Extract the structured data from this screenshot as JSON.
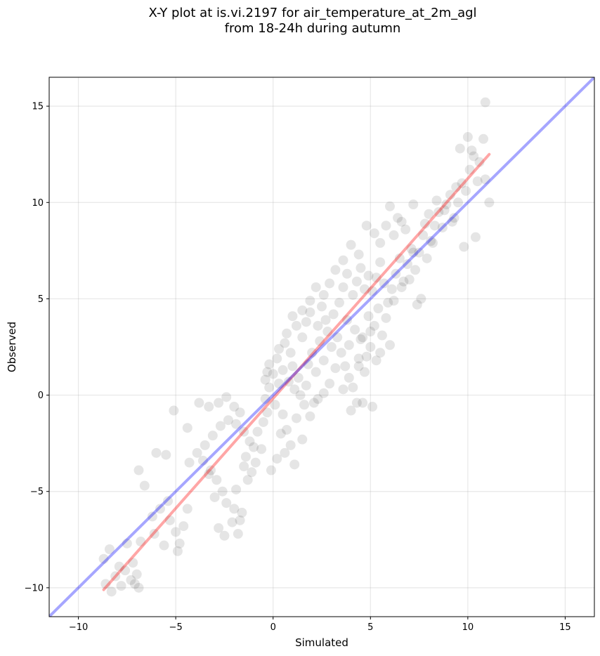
{
  "chart_data": {
    "type": "scatter",
    "title": [
      "X-Y plot at is.vi.2197 for air_temperature_at_2m_agl",
      "from 18-24h during autumn"
    ],
    "xlabel": "Simulated",
    "ylabel": "Observed",
    "xlim": [
      -11.5,
      16.5
    ],
    "ylim": [
      -11.5,
      16.5
    ],
    "xticks": [
      -10,
      -5,
      0,
      5,
      10,
      15
    ],
    "yticks": [
      -10,
      -5,
      0,
      5,
      10,
      15
    ],
    "xtick_labels": [
      "−10",
      "−5",
      "0",
      "5",
      "10",
      "15"
    ],
    "ytick_labels": [
      "−10",
      "−5",
      "0",
      "5",
      "10",
      "15"
    ],
    "grid": true,
    "point_color": "#000000",
    "point_alpha": 0.1,
    "series": [
      {
        "type": "scatter",
        "values": [
          [
            -8.6,
            -9.8
          ],
          [
            -8.3,
            -10.2
          ],
          [
            -8.1,
            -9.4
          ],
          [
            -7.9,
            -8.9
          ],
          [
            -7.6,
            -9.1
          ],
          [
            -7.3,
            -9.6
          ],
          [
            -7.0,
            -9.3
          ],
          [
            -6.9,
            -10.0
          ],
          [
            -7.2,
            -8.7
          ],
          [
            -7.5,
            -7.7
          ],
          [
            -7.8,
            -9.9
          ],
          [
            -8.4,
            -8.0
          ],
          [
            -8.7,
            -8.5
          ],
          [
            -7.1,
            -9.8
          ],
          [
            -6.9,
            -3.9
          ],
          [
            -6.6,
            -4.7
          ],
          [
            -6.0,
            -3.0
          ],
          [
            -5.5,
            -3.1
          ],
          [
            -5.8,
            -5.9
          ],
          [
            -5.3,
            -6.5
          ],
          [
            -5.0,
            -7.1
          ],
          [
            -4.8,
            -7.7
          ],
          [
            -4.6,
            -6.8
          ],
          [
            -4.4,
            -5.9
          ],
          [
            -6.2,
            -6.3
          ],
          [
            -5.6,
            -7.8
          ],
          [
            -5.1,
            -0.8
          ],
          [
            -4.4,
            -1.7
          ],
          [
            -6.8,
            -7.6
          ],
          [
            -6.1,
            -7.2
          ],
          [
            -4.9,
            -8.1
          ],
          [
            -5.4,
            -5.5
          ],
          [
            -3.9,
            -3.0
          ],
          [
            -3.5,
            -2.6
          ],
          [
            -3.2,
            -3.9
          ],
          [
            -2.9,
            -4.4
          ],
          [
            -2.6,
            -5.0
          ],
          [
            -2.4,
            -5.6
          ],
          [
            -2.8,
            -6.9
          ],
          [
            -2.5,
            -7.3
          ],
          [
            -2.1,
            -6.6
          ],
          [
            -1.8,
            -7.2
          ],
          [
            -1.6,
            -6.1
          ],
          [
            -1.9,
            -4.9
          ],
          [
            -3.3,
            -4.1
          ],
          [
            -3.6,
            -3.4
          ],
          [
            -3.1,
            -2.1
          ],
          [
            -2.7,
            -1.6
          ],
          [
            -2.3,
            -1.3
          ],
          [
            -1.9,
            -1.5
          ],
          [
            -1.5,
            -1.9
          ],
          [
            -1.2,
            -2.4
          ],
          [
            -1.4,
            -3.2
          ],
          [
            -1.0,
            -2.7
          ],
          [
            -0.8,
            -1.9
          ],
          [
            -3.8,
            -0.4
          ],
          [
            -3.3,
            -0.6
          ],
          [
            -2.8,
            -0.4
          ],
          [
            -2.4,
            -0.1
          ],
          [
            -2.0,
            -0.6
          ],
          [
            -1.7,
            -0.9
          ],
          [
            -1.5,
            -3.7
          ],
          [
            -1.3,
            -4.4
          ],
          [
            -0.9,
            -3.5
          ],
          [
            -0.6,
            -2.8
          ],
          [
            -0.5,
            -1.4
          ],
          [
            -0.3,
            -0.9
          ],
          [
            -3.0,
            -5.3
          ],
          [
            -1.7,
            -6.5
          ],
          [
            -4.3,
            -3.5
          ],
          [
            -2.0,
            -5.9
          ],
          [
            -1.1,
            -4.0
          ],
          [
            -0.4,
            -0.2
          ],
          [
            -0.2,
            0.4
          ],
          [
            0.1,
            -0.5
          ],
          [
            0.3,
            0.6
          ],
          [
            0.5,
            -1.0
          ],
          [
            0.7,
            -1.8
          ],
          [
            0.9,
            -2.6
          ],
          [
            1.1,
            -3.6
          ],
          [
            0.4,
            -2.0
          ],
          [
            0.2,
            -3.3
          ],
          [
            -0.1,
            -3.9
          ],
          [
            0.6,
            -3.0
          ],
          [
            1.5,
            -2.3
          ],
          [
            1.2,
            -1.2
          ],
          [
            1.6,
            -0.5
          ],
          [
            1.9,
            -1.1
          ],
          [
            2.1,
            -0.4
          ],
          [
            0.0,
            1.1
          ],
          [
            0.2,
            1.9
          ],
          [
            -0.2,
            1.6
          ],
          [
            -0.4,
            0.8
          ],
          [
            0.5,
            1.3
          ],
          [
            0.8,
            0.7
          ],
          [
            1.0,
            1.5
          ],
          [
            1.3,
            0.9
          ],
          [
            0.9,
            2.2
          ],
          [
            0.6,
            2.7
          ],
          [
            0.3,
            2.4
          ],
          [
            -0.3,
            1.2
          ],
          [
            1.1,
            0.3
          ],
          [
            1.4,
            0.0
          ],
          [
            1.7,
            0.5
          ],
          [
            1.8,
            1.6
          ],
          [
            2.0,
            2.2
          ],
          [
            2.2,
            1.2
          ],
          [
            2.4,
            2.8
          ],
          [
            2.6,
            1.8
          ],
          [
            2.8,
            3.3
          ],
          [
            3.0,
            2.5
          ],
          [
            1.5,
            3.0
          ],
          [
            1.7,
            3.8
          ],
          [
            1.9,
            4.3
          ],
          [
            2.3,
            3.6
          ],
          [
            2.5,
            4.6
          ],
          [
            2.7,
            3.9
          ],
          [
            3.1,
            4.2
          ],
          [
            3.3,
            3.0
          ],
          [
            3.5,
            2.2
          ],
          [
            3.7,
            1.5
          ],
          [
            3.9,
            0.9
          ],
          [
            4.1,
            0.4
          ],
          [
            4.3,
            -0.4
          ],
          [
            4.6,
            -0.4
          ],
          [
            5.1,
            -0.6
          ],
          [
            4.0,
            -0.8
          ],
          [
            3.6,
            0.3
          ],
          [
            3.2,
            1.4
          ],
          [
            2.9,
            0.6
          ],
          [
            2.6,
            0.1
          ],
          [
            2.3,
            -0.2
          ],
          [
            4.4,
            1.9
          ],
          [
            4.7,
            1.2
          ],
          [
            5.0,
            2.5
          ],
          [
            5.3,
            1.8
          ],
          [
            5.6,
            3.1
          ],
          [
            5.2,
            3.6
          ],
          [
            4.9,
            4.1
          ],
          [
            4.5,
            2.9
          ],
          [
            4.2,
            3.4
          ],
          [
            3.8,
            3.9
          ],
          [
            3.4,
            4.8
          ],
          [
            3.6,
            5.6
          ],
          [
            3.8,
            6.3
          ],
          [
            4.1,
            5.2
          ],
          [
            4.3,
            5.9
          ],
          [
            4.5,
            6.6
          ],
          [
            4.7,
            5.5
          ],
          [
            4.9,
            6.2
          ],
          [
            5.1,
            5.4
          ],
          [
            5.3,
            6.1
          ],
          [
            5.5,
            6.9
          ],
          [
            5.7,
            5.8
          ],
          [
            5.9,
            4.8
          ],
          [
            6.1,
            5.5
          ],
          [
            6.3,
            6.3
          ],
          [
            6.5,
            7.1
          ],
          [
            6.7,
            5.9
          ],
          [
            6.9,
            6.8
          ],
          [
            7.1,
            7.6
          ],
          [
            7.3,
            6.5
          ],
          [
            7.5,
            7.4
          ],
          [
            7.7,
            8.3
          ],
          [
            7.9,
            7.1
          ],
          [
            8.1,
            8.0
          ],
          [
            8.3,
            8.8
          ],
          [
            8.5,
            9.5
          ],
          [
            8.7,
            8.7
          ],
          [
            8.9,
            9.9
          ],
          [
            9.1,
            10.4
          ],
          [
            9.3,
            9.2
          ],
          [
            9.5,
            10.0
          ],
          [
            9.7,
            11.0
          ],
          [
            9.9,
            10.6
          ],
          [
            10.1,
            11.7
          ],
          [
            10.3,
            12.4
          ],
          [
            9.6,
            12.8
          ],
          [
            10.0,
            13.4
          ],
          [
            10.6,
            12.1
          ],
          [
            10.8,
            13.3
          ],
          [
            10.9,
            15.2
          ],
          [
            11.1,
            10.0
          ],
          [
            10.9,
            11.2
          ],
          [
            10.4,
            8.2
          ],
          [
            9.8,
            7.7
          ],
          [
            9.2,
            9.0
          ],
          [
            8.8,
            9.6
          ],
          [
            8.2,
            7.9
          ],
          [
            7.6,
            5.0
          ],
          [
            7.2,
            7.4
          ],
          [
            6.8,
            8.6
          ],
          [
            6.4,
            9.2
          ],
          [
            6.0,
            9.8
          ],
          [
            5.8,
            8.8
          ],
          [
            5.5,
            7.9
          ],
          [
            5.2,
            8.4
          ],
          [
            4.8,
            8.8
          ],
          [
            4.4,
            7.3
          ],
          [
            4.0,
            7.8
          ],
          [
            3.6,
            7.0
          ],
          [
            3.2,
            6.5
          ],
          [
            2.9,
            5.8
          ],
          [
            2.6,
            5.2
          ],
          [
            2.2,
            5.6
          ],
          [
            1.9,
            4.9
          ],
          [
            1.5,
            4.4
          ],
          [
            1.2,
            3.6
          ],
          [
            1.0,
            4.1
          ],
          [
            0.7,
            3.2
          ],
          [
            4.6,
            3.0
          ],
          [
            5.0,
            3.3
          ],
          [
            5.4,
            4.5
          ],
          [
            5.8,
            4.0
          ],
          [
            6.2,
            4.9
          ],
          [
            6.6,
            5.6
          ],
          [
            7.0,
            6.0
          ],
          [
            7.4,
            4.7
          ],
          [
            6.0,
            2.6
          ],
          [
            5.5,
            2.2
          ],
          [
            4.8,
            2.0
          ],
          [
            4.4,
            1.5
          ],
          [
            3.9,
            2.6
          ],
          [
            7.8,
            8.9
          ],
          [
            8.4,
            10.1
          ],
          [
            8.0,
            9.4
          ],
          [
            7.2,
            9.9
          ],
          [
            6.6,
            9.0
          ],
          [
            6.2,
            8.3
          ],
          [
            9.4,
            10.8
          ],
          [
            10.2,
            12.7
          ],
          [
            10.5,
            11.1
          ]
        ]
      },
      {
        "type": "line",
        "name": "",
        "color": "#ff0000",
        "alpha": 0.35,
        "points": [
          [
            -8.7,
            -10.1
          ],
          [
            11.1,
            12.5
          ]
        ]
      },
      {
        "type": "line",
        "name": "",
        "color": "#0000ff",
        "alpha": 0.35,
        "points": [
          [
            -11.5,
            -11.5
          ],
          [
            16.5,
            16.5
          ]
        ]
      }
    ]
  }
}
